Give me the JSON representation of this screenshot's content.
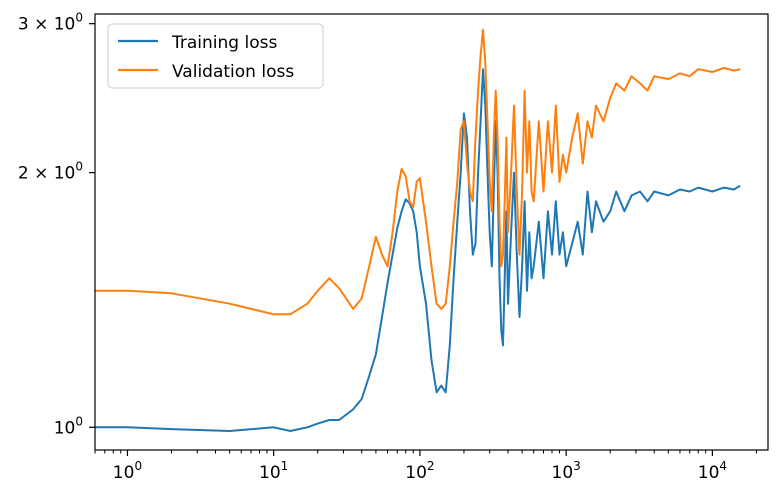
{
  "chart_data": {
    "type": "line",
    "title": "",
    "xlabel": "",
    "ylabel": "",
    "x_scale": "log",
    "y_scale": "log",
    "xlim": [
      0.6,
      24000
    ],
    "ylim": [
      0.94,
      3.08
    ],
    "x_ticks": [
      {
        "value": 1,
        "base": "10",
        "exp": "0"
      },
      {
        "value": 10,
        "base": "10",
        "exp": "1"
      },
      {
        "value": 100,
        "base": "10",
        "exp": "2"
      },
      {
        "value": 1000,
        "base": "10",
        "exp": "3"
      },
      {
        "value": 10000,
        "base": "10",
        "exp": "4"
      }
    ],
    "y_ticks": [
      {
        "value": 1,
        "mantissa": "",
        "base": "10",
        "exp": "0"
      },
      {
        "value": 2,
        "mantissa": "2 × ",
        "base": "10",
        "exp": "0"
      },
      {
        "value": 3,
        "mantissa": "3 × ",
        "base": "10",
        "exp": "0"
      }
    ],
    "grid": false,
    "legend_position": "top-left",
    "series": [
      {
        "name": "Training loss",
        "color": "#1f77b4",
        "x": [
          0.6,
          1,
          2,
          5,
          10,
          13,
          17,
          20,
          24,
          28,
          35,
          40,
          45,
          50,
          55,
          60,
          65,
          70,
          75,
          80,
          85,
          90,
          95,
          100,
          110,
          120,
          130,
          140,
          150,
          160,
          170,
          180,
          190,
          200,
          210,
          220,
          230,
          240,
          250,
          260,
          270,
          280,
          290,
          300,
          310,
          320,
          330,
          340,
          350,
          360,
          370,
          380,
          390,
          400,
          420,
          440,
          460,
          480,
          500,
          520,
          540,
          560,
          580,
          600,
          650,
          700,
          750,
          800,
          850,
          900,
          950,
          1000,
          1100,
          1200,
          1300,
          1400,
          1500,
          1600,
          1800,
          2000,
          2200,
          2500,
          2800,
          3200,
          3600,
          4000,
          5000,
          6000,
          7000,
          8000,
          10000,
          12000,
          14000,
          15500
        ],
        "y": [
          1.0,
          1.0,
          0.995,
          0.99,
          1.0,
          0.99,
          1.0,
          1.01,
          1.02,
          1.02,
          1.05,
          1.08,
          1.15,
          1.22,
          1.35,
          1.48,
          1.6,
          1.72,
          1.8,
          1.86,
          1.84,
          1.8,
          1.7,
          1.55,
          1.4,
          1.2,
          1.1,
          1.12,
          1.1,
          1.25,
          1.5,
          1.75,
          2.0,
          2.35,
          2.2,
          1.8,
          1.6,
          1.65,
          2.0,
          2.3,
          2.65,
          2.4,
          2.0,
          1.7,
          1.55,
          1.9,
          2.3,
          2.0,
          1.5,
          1.3,
          1.25,
          1.5,
          1.8,
          1.4,
          1.7,
          2.0,
          1.6,
          1.35,
          1.55,
          1.85,
          1.45,
          1.7,
          1.5,
          1.55,
          1.75,
          1.5,
          1.8,
          1.6,
          1.85,
          1.6,
          1.7,
          1.55,
          1.65,
          1.75,
          1.6,
          1.9,
          1.7,
          1.85,
          1.75,
          1.8,
          1.9,
          1.8,
          1.88,
          1.9,
          1.85,
          1.9,
          1.88,
          1.91,
          1.9,
          1.92,
          1.9,
          1.92,
          1.91,
          1.93
        ]
      },
      {
        "name": "Validation loss",
        "color": "#ff7f0e",
        "x": [
          0.6,
          1,
          2,
          5,
          10,
          13,
          17,
          20,
          24,
          28,
          35,
          40,
          45,
          50,
          55,
          60,
          65,
          70,
          75,
          80,
          85,
          90,
          95,
          100,
          110,
          120,
          130,
          140,
          150,
          160,
          170,
          180,
          190,
          200,
          210,
          220,
          230,
          240,
          250,
          260,
          270,
          280,
          290,
          300,
          310,
          320,
          330,
          340,
          350,
          360,
          370,
          380,
          390,
          400,
          420,
          440,
          460,
          480,
          500,
          520,
          540,
          560,
          580,
          600,
          650,
          700,
          750,
          800,
          850,
          900,
          950,
          1000,
          1100,
          1200,
          1300,
          1400,
          1500,
          1600,
          1800,
          2000,
          2200,
          2500,
          2800,
          3200,
          3600,
          4000,
          5000,
          6000,
          7000,
          8000,
          10000,
          12000,
          14000,
          15500
        ],
        "y": [
          1.45,
          1.45,
          1.44,
          1.4,
          1.36,
          1.36,
          1.4,
          1.45,
          1.5,
          1.46,
          1.38,
          1.42,
          1.55,
          1.68,
          1.6,
          1.55,
          1.7,
          1.9,
          2.02,
          1.98,
          1.85,
          1.82,
          1.95,
          1.97,
          1.75,
          1.55,
          1.4,
          1.38,
          1.4,
          1.55,
          1.75,
          1.95,
          2.25,
          2.3,
          2.05,
          1.9,
          1.85,
          2.2,
          2.5,
          2.75,
          2.95,
          2.7,
          2.3,
          1.95,
          1.8,
          2.2,
          2.5,
          2.2,
          1.75,
          1.55,
          1.6,
          1.85,
          2.2,
          1.7,
          2.0,
          2.4,
          1.9,
          1.6,
          1.9,
          2.5,
          2.0,
          2.3,
          1.9,
          1.85,
          2.3,
          1.9,
          2.3,
          2.0,
          2.4,
          1.95,
          2.1,
          2.0,
          2.2,
          2.35,
          2.05,
          2.3,
          2.2,
          2.4,
          2.3,
          2.45,
          2.55,
          2.5,
          2.6,
          2.55,
          2.5,
          2.6,
          2.58,
          2.62,
          2.6,
          2.65,
          2.63,
          2.66,
          2.64,
          2.65
        ]
      }
    ]
  }
}
